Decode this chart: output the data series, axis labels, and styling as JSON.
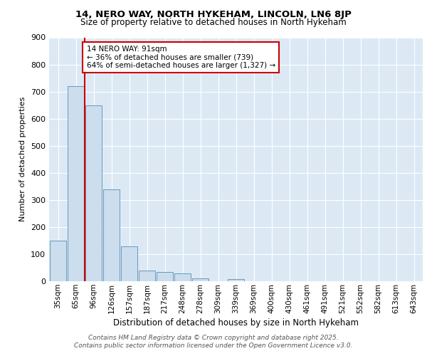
{
  "title1": "14, NERO WAY, NORTH HYKEHAM, LINCOLN, LN6 8JP",
  "title2": "Size of property relative to detached houses in North Hykeham",
  "xlabel": "Distribution of detached houses by size in North Hykeham",
  "ylabel": "Number of detached properties",
  "categories": [
    "35sqm",
    "65sqm",
    "96sqm",
    "126sqm",
    "157sqm",
    "187sqm",
    "217sqm",
    "248sqm",
    "278sqm",
    "309sqm",
    "339sqm",
    "369sqm",
    "400sqm",
    "430sqm",
    "461sqm",
    "491sqm",
    "521sqm",
    "552sqm",
    "582sqm",
    "613sqm",
    "643sqm"
  ],
  "values": [
    150,
    720,
    650,
    340,
    130,
    40,
    35,
    28,
    10,
    0,
    8,
    0,
    0,
    0,
    0,
    0,
    0,
    0,
    0,
    0,
    0
  ],
  "bar_color": "#ccdded",
  "bar_edge_color": "#6699bb",
  "vline_x": 1.5,
  "vline_color": "#cc0000",
  "annotation_line1": "14 NERO WAY: 91sqm",
  "annotation_line2": "← 36% of detached houses are smaller (739)",
  "annotation_line3": "64% of semi-detached houses are larger (1,327) →",
  "annotation_box_color": "#ffffff",
  "annotation_box_edge": "#cc0000",
  "ylim": [
    0,
    900
  ],
  "yticks": [
    0,
    100,
    200,
    300,
    400,
    500,
    600,
    700,
    800,
    900
  ],
  "footer1": "Contains HM Land Registry data © Crown copyright and database right 2025.",
  "footer2": "Contains public sector information licensed under the Open Government Licence v3.0.",
  "fig_bg": "#ffffff",
  "plot_bg": "#dce9f5"
}
